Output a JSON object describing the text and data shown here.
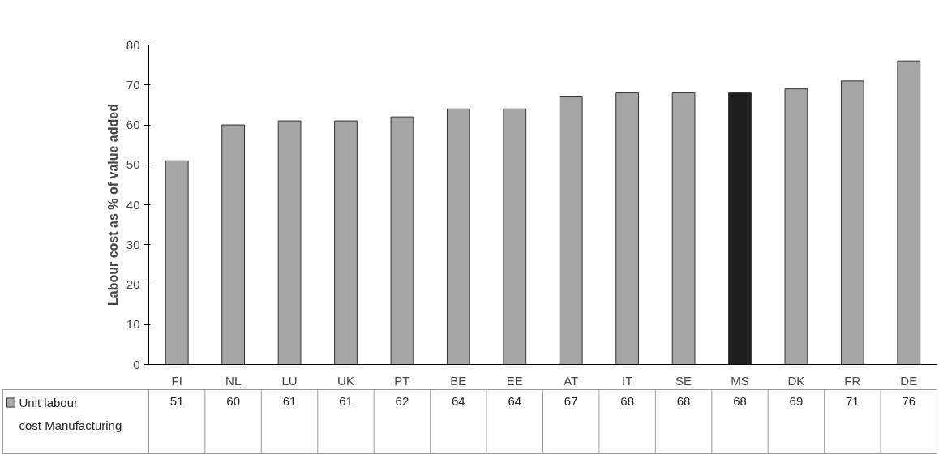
{
  "chart_data": {
    "type": "bar",
    "ylabel": "Labour cost as % of value added",
    "categories": [
      "FI",
      "NL",
      "LU",
      "UK",
      "PT",
      "BE",
      "EE",
      "AT",
      "IT",
      "SE",
      "MS",
      "DK",
      "FR",
      "DE"
    ],
    "series": [
      {
        "name": "Unit labour cost Manufacturing",
        "color": "#a6a6a6",
        "values": [
          51,
          60,
          61,
          61,
          62,
          64,
          64,
          67,
          68,
          68,
          68,
          69,
          71,
          76
        ],
        "colors": [
          "#a6a6a6",
          "#a6a6a6",
          "#a6a6a6",
          "#a6a6a6",
          "#a6a6a6",
          "#a6a6a6",
          "#a6a6a6",
          "#a6a6a6",
          "#a6a6a6",
          "#a6a6a6",
          "#1e1e1e",
          "#a6a6a6",
          "#a6a6a6",
          "#a6a6a6"
        ]
      }
    ],
    "ylim": [
      0,
      80
    ],
    "yticks": [
      0,
      10,
      20,
      30,
      40,
      50,
      60,
      70,
      80
    ],
    "grid": false,
    "legend": "bottom",
    "data_labels": true
  }
}
